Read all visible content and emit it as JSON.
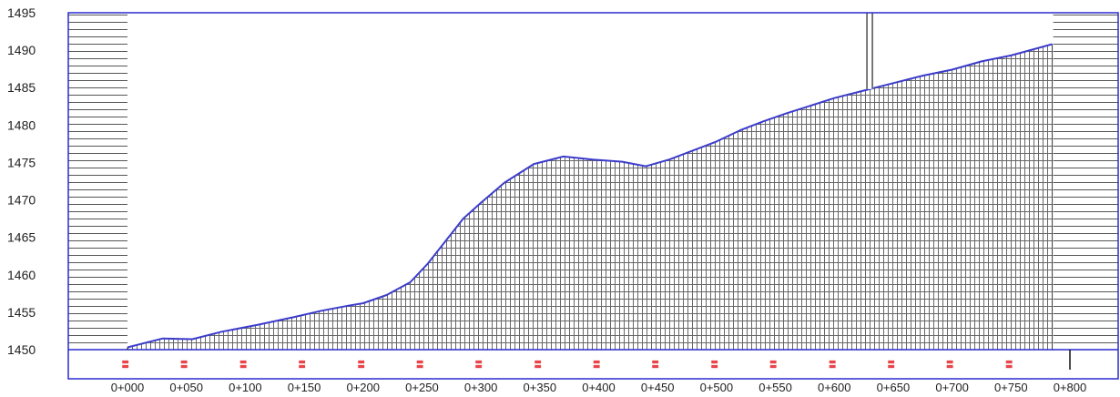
{
  "chart_data": {
    "type": "area",
    "title": "",
    "xlabel": "",
    "ylabel": "",
    "ylim": [
      1450,
      1495
    ],
    "xlim": [
      0,
      800
    ],
    "yticks": [
      1450,
      1455,
      1460,
      1465,
      1470,
      1475,
      1480,
      1485,
      1490,
      1495
    ],
    "xtick_labels": [
      "0+000",
      "0+050",
      "0+100",
      "0+150",
      "0+200",
      "0+250",
      "0+300",
      "0+350",
      "0+400",
      "0+450",
      "0+500",
      "0+550",
      "0+600",
      "0+650",
      "0+700",
      "0+750",
      "0+800"
    ],
    "xticks": [
      0,
      50,
      100,
      150,
      200,
      250,
      300,
      350,
      400,
      450,
      500,
      550,
      600,
      650,
      700,
      750,
      800
    ],
    "grid": false,
    "colors": {
      "profile_line": "#3c3ccc",
      "frame": "#2a2ad0",
      "hatch": "#555555",
      "marker_text": "#e8444a"
    },
    "series": [
      {
        "x": [
          0,
          30,
          55,
          80,
          110,
          140,
          165,
          185,
          200,
          220,
          240,
          255,
          270,
          285,
          300,
          320,
          345,
          370,
          395,
          420,
          440,
          460,
          480,
          500,
          520,
          540,
          560,
          580,
          600,
          625,
          650,
          675,
          700,
          725,
          750,
          785
        ],
        "values": [
          1450.3,
          1451.5,
          1451.4,
          1452.4,
          1453.3,
          1454.3,
          1455.2,
          1455.8,
          1456.2,
          1457.3,
          1459.0,
          1461.5,
          1464.5,
          1467.5,
          1469.6,
          1472.3,
          1474.8,
          1475.8,
          1475.4,
          1475.1,
          1474.5,
          1475.4,
          1476.6,
          1477.8,
          1479.3,
          1480.5,
          1481.6,
          1482.6,
          1483.6,
          1484.6,
          1485.6,
          1486.6,
          1487.4,
          1488.5,
          1489.3,
          1490.8
        ]
      }
    ],
    "vertical_marker": {
      "x": 630
    },
    "station_markers": [
      0,
      50,
      100,
      150,
      200,
      250,
      300,
      350,
      400,
      450,
      500,
      550,
      600,
      650,
      700,
      750
    ]
  }
}
